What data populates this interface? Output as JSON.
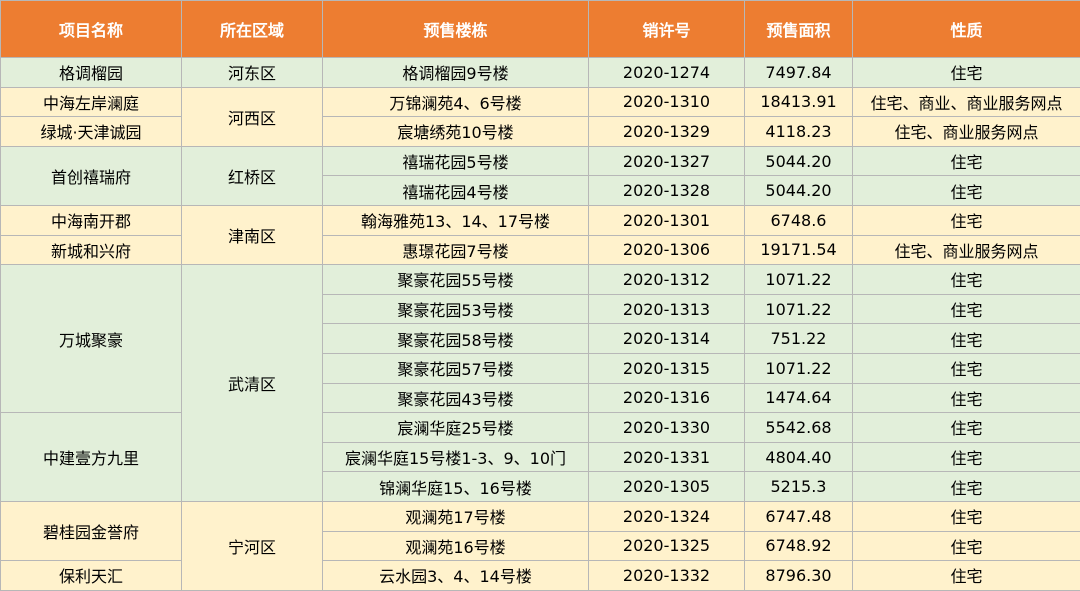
{
  "headers": {
    "project": "项目名称",
    "district": "所在区域",
    "building": "预售楼栋",
    "permit": "销许号",
    "area": "预售面积",
    "nature": "性质"
  },
  "projects": [
    "格调榴园",
    "中海左岸澜庭",
    "绿城·天津诚园",
    "首创禧瑞府",
    "中海南开郡",
    "新城和兴府",
    "万城聚豪",
    "中建壹方九里",
    "碧桂园金誉府",
    "保利天汇"
  ],
  "districts": [
    "河东区",
    "河西区",
    "红桥区",
    "津南区",
    "武清区",
    "宁河区"
  ],
  "rows": [
    {
      "building": "格调榴园9号楼",
      "permit": "2020-1274",
      "area": "7497.84",
      "nature": "住宅"
    },
    {
      "building": "万锦澜苑4、6号楼",
      "permit": "2020-1310",
      "area": "18413.91",
      "nature": "住宅、商业、商业服务网点"
    },
    {
      "building": "宸塘绣苑10号楼",
      "permit": "2020-1329",
      "area": "4118.23",
      "nature": "住宅、商业服务网点"
    },
    {
      "building": "禧瑞花园5号楼",
      "permit": "2020-1327",
      "area": "5044.20",
      "nature": "住宅"
    },
    {
      "building": "禧瑞花园4号楼",
      "permit": "2020-1328",
      "area": "5044.20",
      "nature": "住宅"
    },
    {
      "building": "翰海雅苑13、14、17号楼",
      "permit": "2020-1301",
      "area": "6748.6",
      "nature": "住宅"
    },
    {
      "building": "惠璟花园7号楼",
      "permit": "2020-1306",
      "area": "19171.54",
      "nature": "住宅、商业服务网点"
    },
    {
      "building": "聚豪花园55号楼",
      "permit": "2020-1312",
      "area": "1071.22",
      "nature": "住宅"
    },
    {
      "building": "聚豪花园53号楼",
      "permit": "2020-1313",
      "area": "1071.22",
      "nature": "住宅"
    },
    {
      "building": "聚豪花园58号楼",
      "permit": "2020-1314",
      "area": "751.22",
      "nature": "住宅"
    },
    {
      "building": "聚豪花园57号楼",
      "permit": "2020-1315",
      "area": "1071.22",
      "nature": "住宅"
    },
    {
      "building": "聚豪花园43号楼",
      "permit": "2020-1316",
      "area": "1474.64",
      "nature": "住宅"
    },
    {
      "building": "宸澜华庭25号楼",
      "permit": "2020-1330",
      "area": "5542.68",
      "nature": "住宅"
    },
    {
      "building": "宸澜华庭15号楼1-3、9、10门",
      "permit": "2020-1331",
      "area": "4804.40",
      "nature": "住宅"
    },
    {
      "building": "锦澜华庭15、16号楼",
      "permit": "2020-1305",
      "area": "5215.3",
      "nature": "住宅"
    },
    {
      "building": "观澜苑17号楼",
      "permit": "2020-1324",
      "area": "6747.48",
      "nature": "住宅"
    },
    {
      "building": "观澜苑16号楼",
      "permit": "2020-1325",
      "area": "6748.92",
      "nature": "住宅"
    },
    {
      "building": "云水园3、4、14号楼",
      "permit": "2020-1332",
      "area": "8796.30",
      "nature": "住宅"
    }
  ]
}
